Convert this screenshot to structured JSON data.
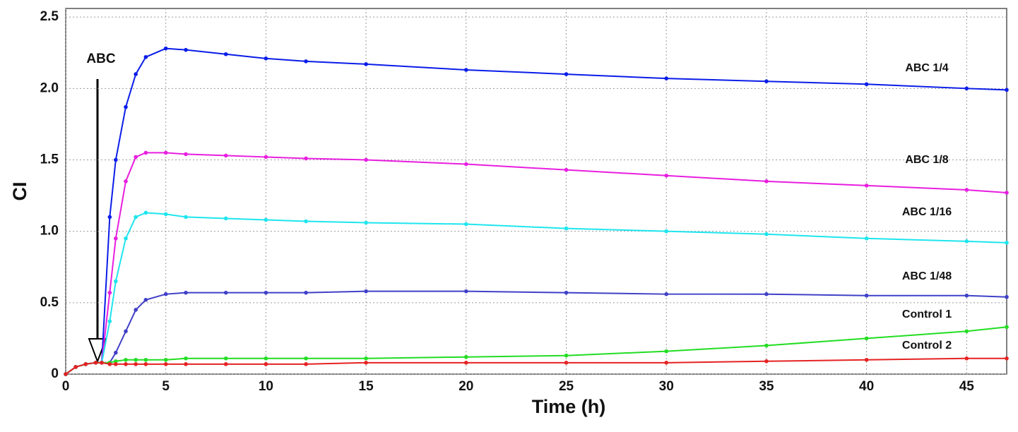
{
  "chart_data": {
    "type": "line",
    "xlabel": "Time (h)",
    "ylabel": "CI",
    "annotation": "ABC",
    "x": [
      0,
      0.5,
      1,
      1.5,
      1.8,
      2.2,
      2.5,
      3,
      3.5,
      4,
      5,
      6,
      8,
      10,
      12,
      15,
      20,
      25,
      30,
      35,
      40,
      45,
      47
    ],
    "series": [
      {
        "name": "ABC 1/4",
        "color": "#0a1de8",
        "values": [
          0,
          0.05,
          0.07,
          0.08,
          0.08,
          1.1,
          1.5,
          1.87,
          2.1,
          2.22,
          2.28,
          2.27,
          2.24,
          2.21,
          2.19,
          2.17,
          2.13,
          2.1,
          2.07,
          2.05,
          2.03,
          2.0,
          1.99
        ]
      },
      {
        "name": "ABC 1/8",
        "color": "#e81ee0",
        "values": [
          0,
          0.05,
          0.07,
          0.08,
          0.08,
          0.57,
          0.95,
          1.35,
          1.52,
          1.55,
          1.55,
          1.54,
          1.53,
          1.52,
          1.51,
          1.5,
          1.47,
          1.43,
          1.39,
          1.35,
          1.32,
          1.29,
          1.27
        ]
      },
      {
        "name": "ABC 1/16",
        "color": "#1ee5ee",
        "values": [
          0,
          0.05,
          0.07,
          0.08,
          0.08,
          0.37,
          0.65,
          0.95,
          1.1,
          1.13,
          1.12,
          1.1,
          1.09,
          1.08,
          1.07,
          1.06,
          1.05,
          1.02,
          1.0,
          0.98,
          0.95,
          0.93,
          0.92
        ]
      },
      {
        "name": "ABC 1/48",
        "color": "#4040c8",
        "values": [
          0,
          0.05,
          0.07,
          0.08,
          0.08,
          0.08,
          0.15,
          0.3,
          0.45,
          0.52,
          0.56,
          0.57,
          0.57,
          0.57,
          0.57,
          0.58,
          0.58,
          0.57,
          0.56,
          0.56,
          0.55,
          0.55,
          0.54
        ]
      },
      {
        "name": "Control 1",
        "color": "#22dd22",
        "values": [
          0,
          0.05,
          0.07,
          0.08,
          0.08,
          0.08,
          0.09,
          0.1,
          0.1,
          0.1,
          0.1,
          0.11,
          0.11,
          0.11,
          0.11,
          0.11,
          0.12,
          0.13,
          0.16,
          0.2,
          0.25,
          0.3,
          0.33
        ]
      },
      {
        "name": "Control 2",
        "color": "#e52222",
        "values": [
          0,
          0.05,
          0.07,
          0.08,
          0.08,
          0.07,
          0.07,
          0.07,
          0.07,
          0.07,
          0.07,
          0.07,
          0.07,
          0.07,
          0.07,
          0.08,
          0.08,
          0.08,
          0.08,
          0.09,
          0.1,
          0.11,
          0.11
        ]
      }
    ],
    "xlim": [
      0,
      47
    ],
    "xticks": [
      0,
      5,
      10,
      15,
      20,
      25,
      30,
      35,
      40,
      45
    ],
    "ylim": [
      0,
      2.56
    ],
    "yticks": [
      0,
      0.5,
      {
        "value": 1,
        "label": "1.0"
      },
      1.5,
      {
        "value": 2,
        "label": "2.0"
      },
      2.5
    ],
    "grid": true
  }
}
